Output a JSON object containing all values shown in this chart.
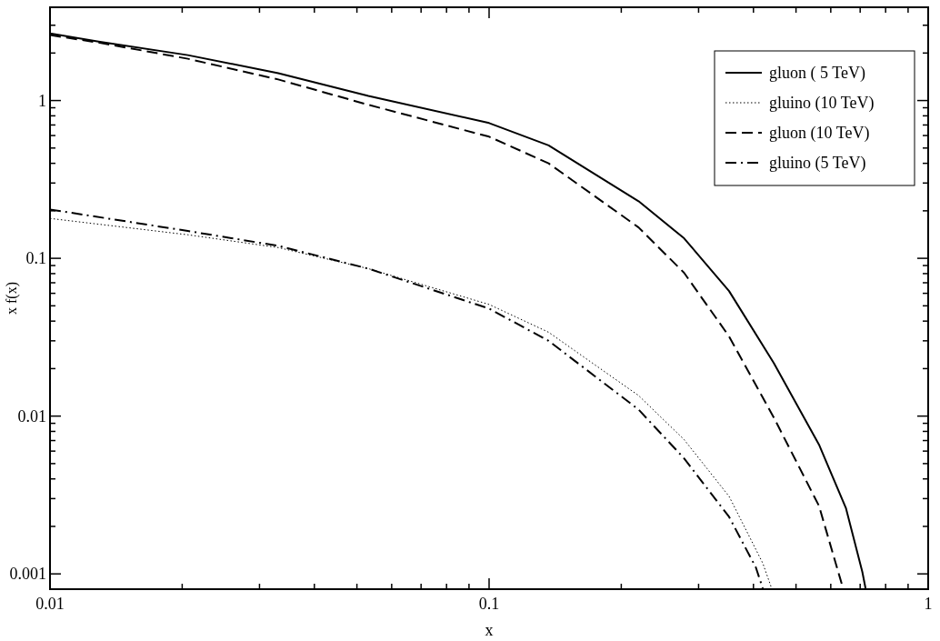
{
  "chart_data": {
    "type": "line",
    "xlabel": "x",
    "ylabel": "x f(x)",
    "log": "xy",
    "legend": "top right",
    "grid": false,
    "xlim": [
      0.01,
      1
    ],
    "ylim": [
      0.0008,
      3.9
    ],
    "xticks": [
      0.01,
      {
        "value": 0.02,
        "label": null
      },
      {
        "value": 0.03,
        "label": null
      },
      {
        "value": 0.04,
        "label": null
      },
      {
        "value": 0.05,
        "label": null
      },
      {
        "value": 0.06,
        "label": null
      },
      {
        "value": 0.07,
        "label": null
      },
      {
        "value": 0.08,
        "label": null
      },
      {
        "value": 0.09,
        "label": null
      },
      0.1,
      {
        "value": 0.2,
        "label": null
      },
      {
        "value": 0.3,
        "label": null
      },
      {
        "value": 0.4,
        "label": null
      },
      {
        "value": 0.5,
        "label": null
      },
      {
        "value": 0.6,
        "label": null
      },
      {
        "value": 0.7,
        "label": null
      },
      {
        "value": 0.8,
        "label": null
      },
      {
        "value": 0.9,
        "label": null
      },
      1
    ],
    "yticks": [
      0.001,
      {
        "value": 0.002,
        "label": null
      },
      {
        "value": 0.003,
        "label": null
      },
      {
        "value": 0.004,
        "label": null
      },
      {
        "value": 0.005,
        "label": null
      },
      {
        "value": 0.006,
        "label": null
      },
      {
        "value": 0.007,
        "label": null
      },
      {
        "value": 0.008,
        "label": null
      },
      {
        "value": 0.009,
        "label": null
      },
      0.01,
      {
        "value": 0.02,
        "label": null
      },
      {
        "value": 0.03,
        "label": null
      },
      {
        "value": 0.04,
        "label": null
      },
      {
        "value": 0.05,
        "label": null
      },
      {
        "value": 0.06,
        "label": null
      },
      {
        "value": 0.07,
        "label": null
      },
      {
        "value": 0.08,
        "label": null
      },
      {
        "value": 0.09,
        "label": null
      },
      0.1,
      {
        "value": 0.2,
        "label": null
      },
      {
        "value": 0.3,
        "label": null
      },
      {
        "value": 0.4,
        "label": null
      },
      {
        "value": 0.5,
        "label": null
      },
      {
        "value": 0.6,
        "label": null
      },
      {
        "value": 0.7,
        "label": null
      },
      {
        "value": 0.8,
        "label": null
      },
      {
        "value": 0.9,
        "label": null
      },
      1,
      {
        "value": 2,
        "label": null
      },
      {
        "value": 3,
        "label": null
      }
    ],
    "series": [
      {
        "name": "gluon ( 5 TeV)",
        "color": "#000000",
        "line_style": "solid",
        "x": [
          0.01,
          0.0129,
          0.0206,
          0.0331,
          0.0531,
          0.1,
          0.1366,
          0.219,
          0.278,
          0.352,
          0.445,
          0.564,
          0.65,
          0.708,
          0.72
        ],
        "values": [
          2.66,
          2.36,
          1.94,
          1.49,
          1.07,
          0.72,
          0.52,
          0.23,
          0.134,
          0.062,
          0.0217,
          0.0066,
          0.0026,
          0.00103,
          0.00081
        ]
      },
      {
        "name": "gluino (10 TeV)",
        "color": "#000000",
        "line_style": "dotted",
        "x": [
          0.01,
          0.0206,
          0.0331,
          0.0531,
          0.1,
          0.1366,
          0.219,
          0.278,
          0.352,
          0.42,
          0.44
        ],
        "values": [
          0.179,
          0.141,
          0.117,
          0.086,
          0.051,
          0.034,
          0.0135,
          0.0071,
          0.0031,
          0.00117,
          0.00081
        ]
      },
      {
        "name": "gluon (10 TeV)",
        "color": "#000000",
        "line_style": "dashed",
        "x": [
          0.01,
          0.0129,
          0.0206,
          0.0331,
          0.0531,
          0.1,
          0.1366,
          0.219,
          0.278,
          0.352,
          0.445,
          0.564,
          0.63,
          0.64
        ],
        "values": [
          2.6,
          2.33,
          1.84,
          1.36,
          0.94,
          0.59,
          0.4,
          0.157,
          0.081,
          0.032,
          0.0098,
          0.0027,
          0.00094,
          0.00081
        ]
      },
      {
        "name": "gluino (5 TeV)",
        "color": "#000000",
        "line_style": "dashdot",
        "x": [
          0.01,
          0.0206,
          0.0331,
          0.0531,
          0.1,
          0.1366,
          0.219,
          0.278,
          0.352,
          0.405,
          0.42
        ],
        "values": [
          0.204,
          0.149,
          0.12,
          0.086,
          0.048,
          0.03,
          0.011,
          0.0054,
          0.0023,
          0.0011,
          0.00081
        ]
      }
    ]
  }
}
